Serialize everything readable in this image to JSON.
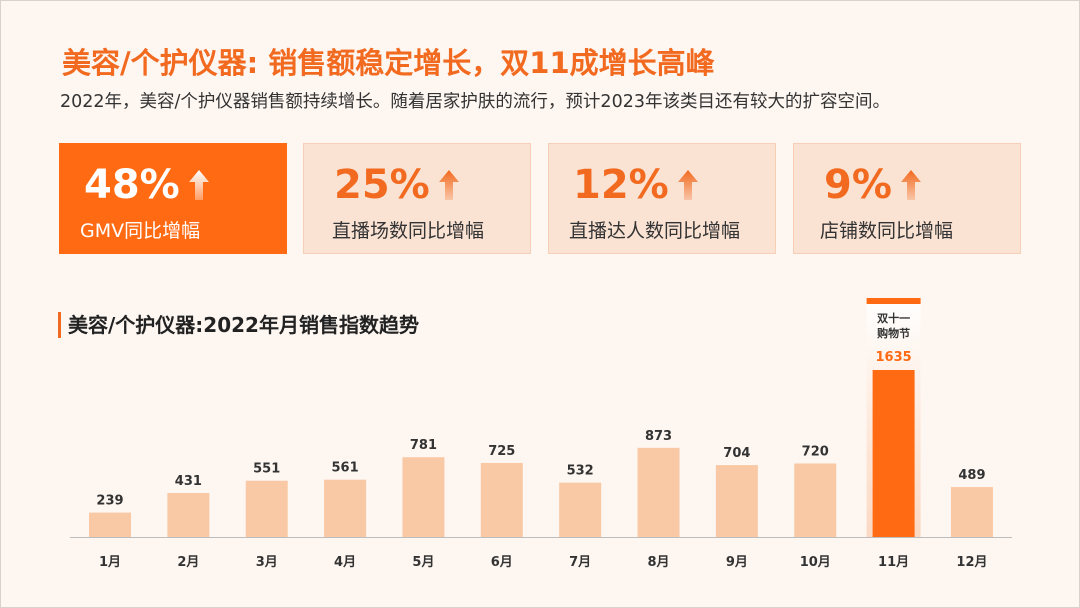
{
  "header": {
    "title": "美容/个护仪器: 销售额稳定增长，双11成增长高峰",
    "subtitle": "2022年，美容/个护仪器销售额持续增长。随着居家护肤的流行，预计2023年该类目还有较大的扩容空间。"
  },
  "stats": [
    {
      "value": "48%",
      "label": "GMV同比增幅"
    },
    {
      "value": "25%",
      "label": "直播场数同比增幅"
    },
    {
      "value": "12%",
      "label": "直播达人数同比增幅"
    },
    {
      "value": "9%",
      "label": "店铺数同比增幅"
    }
  ],
  "colors": {
    "accent": "#f26a1f",
    "bar": "#f9c9a6",
    "highlight": "#ff6a13",
    "card_bg": "#fbe3d4"
  },
  "chart_data": {
    "type": "bar",
    "title": "美容/个护仪器:2022年月销售指数趋势",
    "categories": [
      "1月",
      "2月",
      "3月",
      "4月",
      "5月",
      "6月",
      "7月",
      "8月",
      "9月",
      "10月",
      "11月",
      "12月"
    ],
    "values": [
      239,
      431,
      551,
      561,
      781,
      725,
      532,
      873,
      704,
      720,
      1635,
      489
    ],
    "xlabel": "",
    "ylabel": "",
    "ylim": [
      0,
      1700
    ],
    "grid": false,
    "highlight": {
      "category": "11月",
      "annotation": "双十一\n购物节"
    }
  }
}
